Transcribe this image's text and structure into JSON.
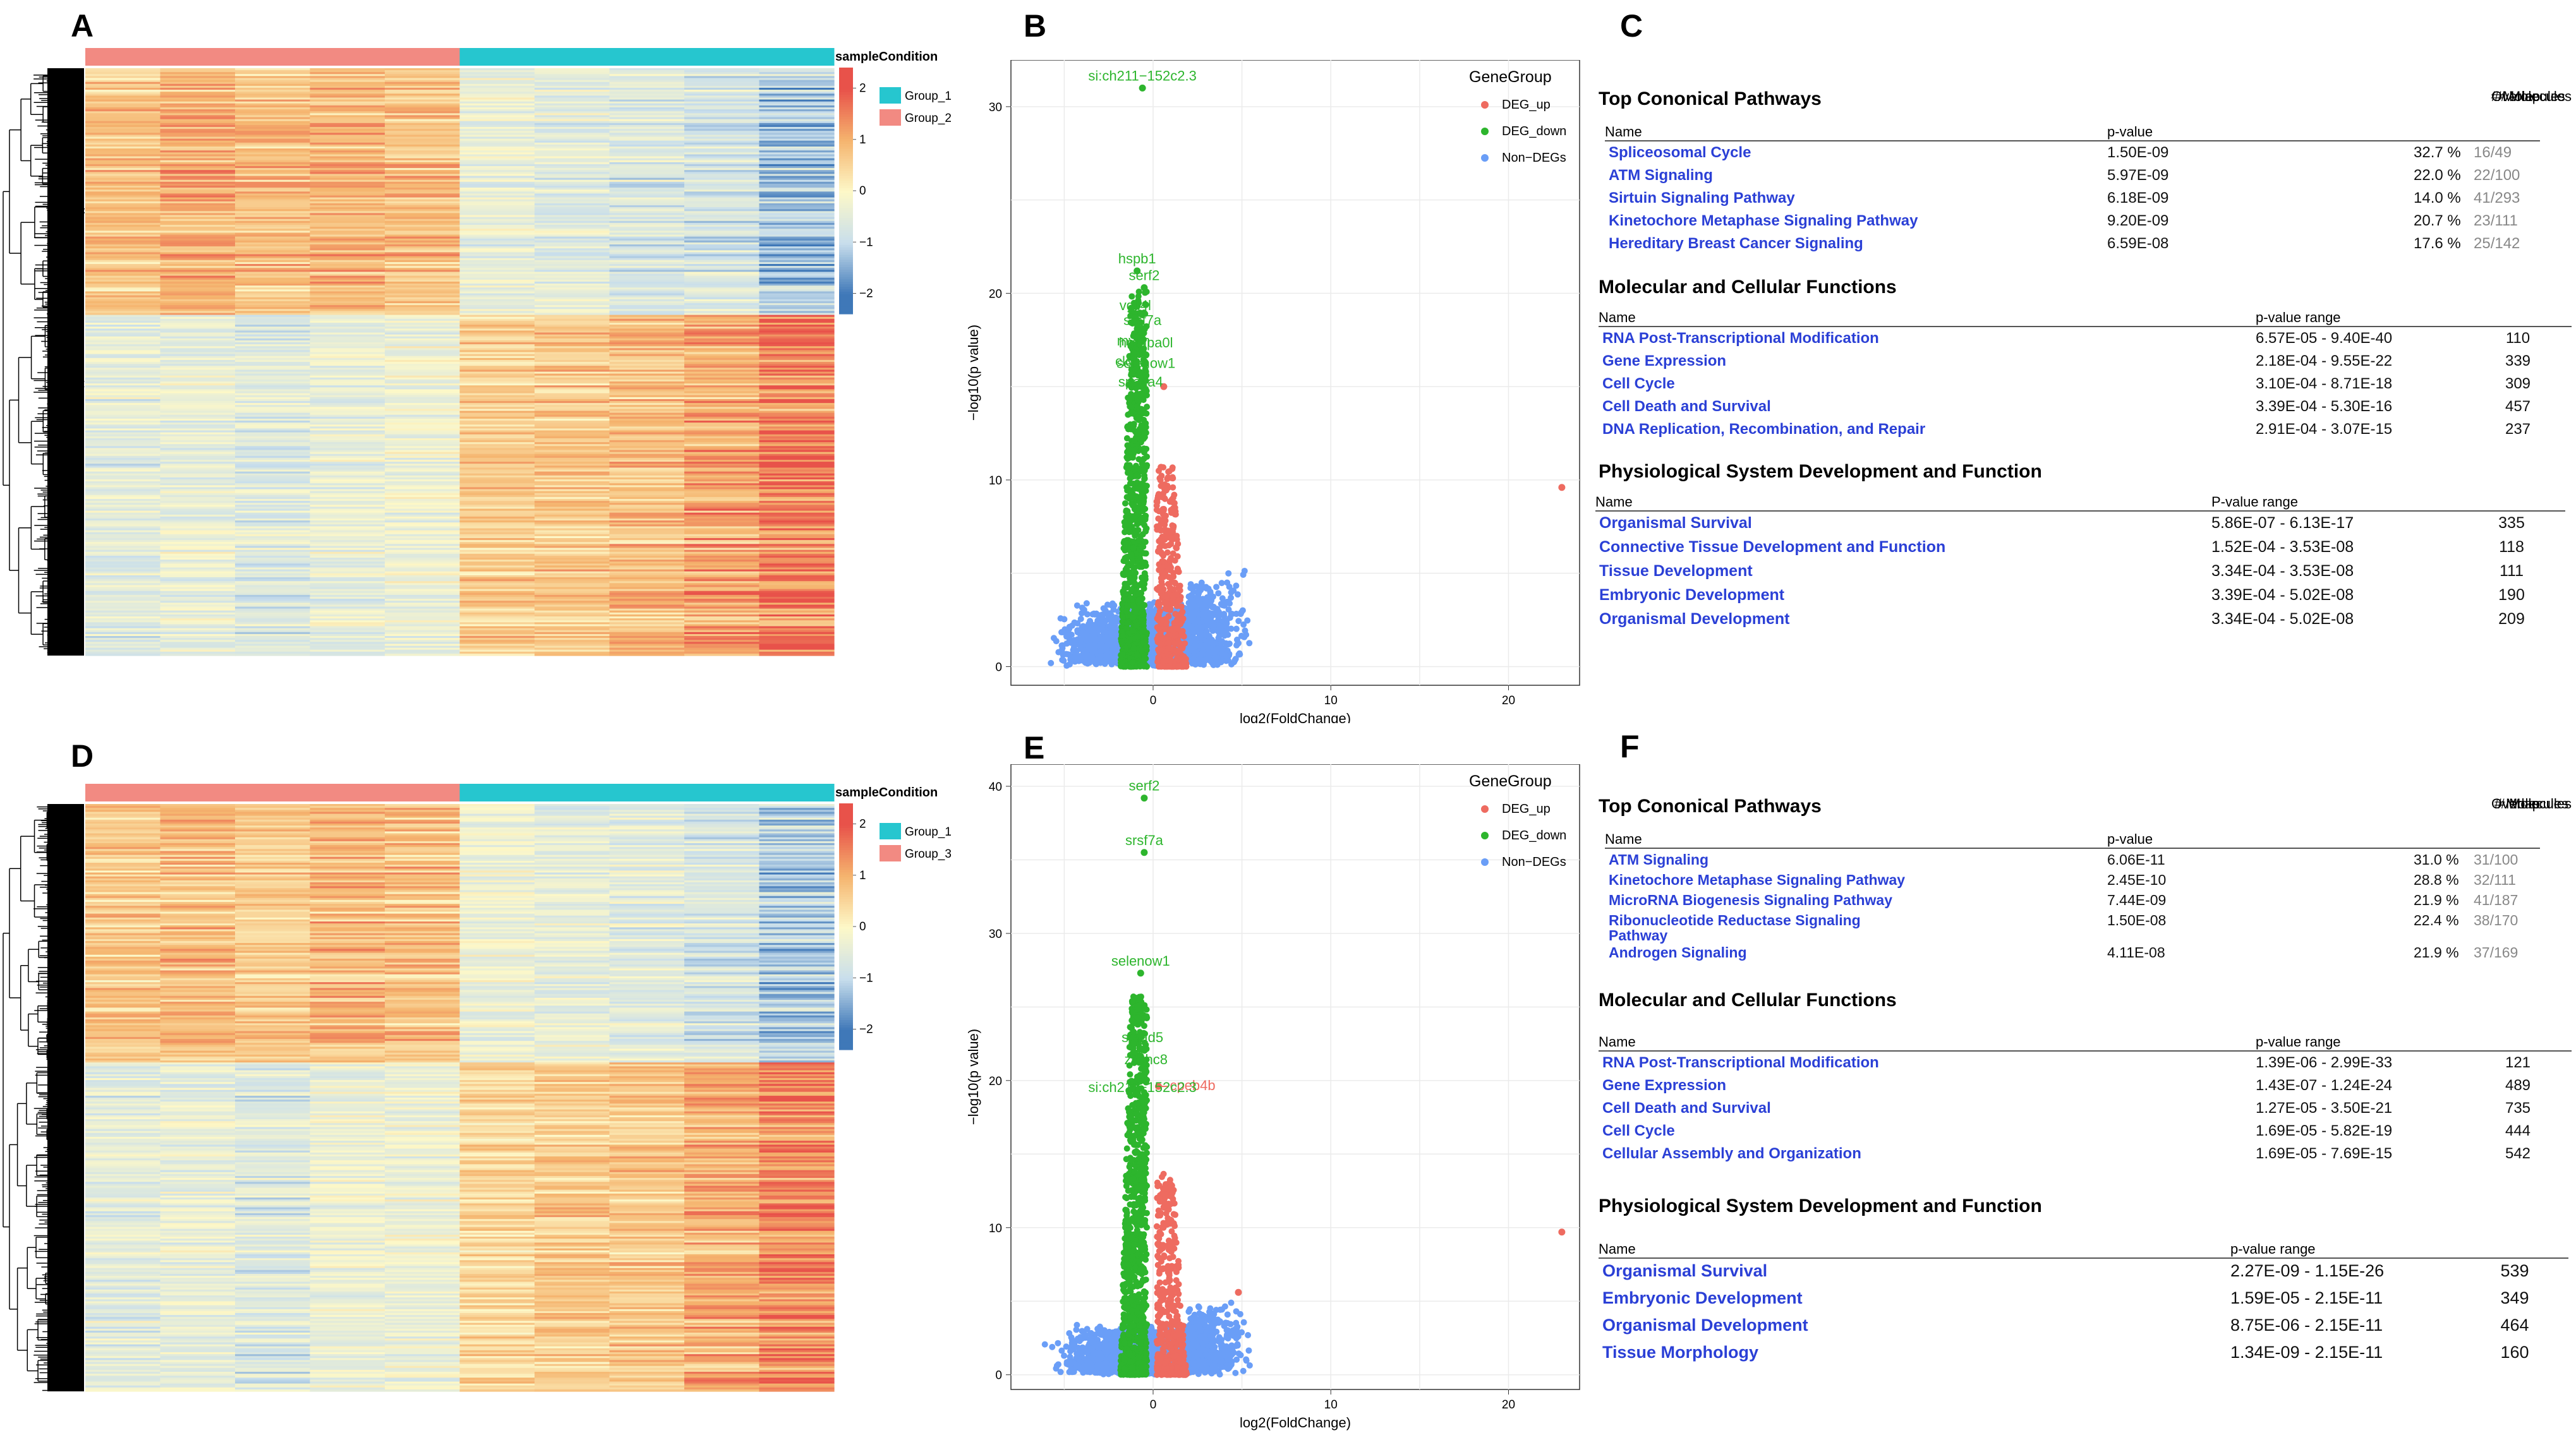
{
  "panels": {
    "A": "A",
    "B": "B",
    "C": "C",
    "D": "D",
    "E": "E",
    "F": "F"
  },
  "colors": {
    "group_1": "#26c6cf",
    "group_2": "#f28a82",
    "heat_high": "#e8524a",
    "heat_mid": "#fdf8c8",
    "heat_low": "#3f78b8",
    "deg_up": "#ee6b60",
    "deg_down": "#2db52d",
    "non_degs": "#6a9ef7",
    "link_text": "#2b40d6"
  },
  "chart_data": [
    {
      "id": "A",
      "type": "heatmap",
      "legend_title": "sampleCondition",
      "legend_entries": [
        "Group_1",
        "Group_2"
      ],
      "sample_groups": [
        "Group_2",
        "Group_2",
        "Group_2",
        "Group_2",
        "Group_2",
        "Group_1",
        "Group_1",
        "Group_1",
        "Group_1",
        "Group_1"
      ],
      "color_scale_ticks": [
        "2",
        "1",
        "0",
        "−1",
        "−2"
      ],
      "clusters": [
        {
          "fraction": 0.42,
          "pattern": [
            0.7,
            1.0,
            0.8,
            0.9,
            0.8,
            -0.4,
            -0.5,
            -0.6,
            -0.7,
            -1.2
          ]
        },
        {
          "fraction": 0.58,
          "pattern": [
            -0.5,
            -0.4,
            -0.6,
            -0.4,
            -0.3,
            0.6,
            0.7,
            0.8,
            1.1,
            1.5
          ]
        }
      ]
    },
    {
      "id": "B",
      "type": "scatter",
      "xlabel": "log2(FoldChange)",
      "ylabel": "−log10(p value)",
      "xlim": [
        -8,
        24
      ],
      "ylim": [
        -1,
        32.5
      ],
      "xticks": [
        0,
        10,
        20
      ],
      "yticks": [
        0,
        10,
        20,
        30
      ],
      "legend_title": "GeneGroup",
      "legend": [
        "DEG_up",
        "DEG_down",
        "Non−DEGs"
      ],
      "grid": true,
      "labeled_points": [
        {
          "label": "si:ch211−152c2.3",
          "x": -0.6,
          "y": 31.0,
          "group": "DEG_down"
        },
        {
          "label": "hspb1",
          "x": -0.9,
          "y": 21.2,
          "group": "DEG_down"
        },
        {
          "label": "serf2",
          "x": -0.5,
          "y": 20.3,
          "group": "DEG_down"
        },
        {
          "label": "vgll4l",
          "x": -1.0,
          "y": 18.7,
          "group": "DEG_down"
        },
        {
          "label": "srsf7a",
          "x": -0.6,
          "y": 17.9,
          "group": "DEG_down"
        },
        {
          "label": "mycn",
          "x": -1.1,
          "y": 16.8,
          "group": "DEG_down"
        },
        {
          "label": "hnrnpa0l",
          "x": -0.4,
          "y": 16.7,
          "group": "DEG_down"
        },
        {
          "label": "cldnb",
          "x": -1.2,
          "y": 15.7,
          "group": "DEG_down"
        },
        {
          "label": "selenow1",
          "x": -0.4,
          "y": 15.6,
          "group": "DEG_down"
        },
        {
          "label": "spaca4",
          "x": -0.7,
          "y": 14.6,
          "group": "DEG_down"
        }
      ],
      "outlier_points": [
        {
          "x": 23.0,
          "y": 9.6,
          "group": "DEG_up"
        },
        {
          "x": 0.6,
          "y": 15.0,
          "group": "DEG_up"
        }
      ]
    },
    {
      "id": "D",
      "type": "heatmap",
      "legend_title": "sampleCondition",
      "legend_entries": [
        "Group_1",
        "Group_3"
      ],
      "sample_groups": [
        "Group_3",
        "Group_3",
        "Group_3",
        "Group_3",
        "Group_3",
        "Group_1",
        "Group_1",
        "Group_1",
        "Group_1",
        "Group_1"
      ],
      "color_scale_ticks": [
        "2",
        "1",
        "0",
        "−1",
        "−2"
      ],
      "clusters": [
        {
          "fraction": 0.44,
          "pattern": [
            0.7,
            0.8,
            0.6,
            0.9,
            0.8,
            -0.3,
            -0.4,
            -0.5,
            -0.7,
            -1.1
          ]
        },
        {
          "fraction": 0.56,
          "pattern": [
            -0.5,
            -0.4,
            -0.6,
            -0.3,
            -0.3,
            0.5,
            0.6,
            0.7,
            1.0,
            1.5
          ]
        }
      ]
    },
    {
      "id": "E",
      "type": "scatter",
      "xlabel": "log2(FoldChange)",
      "ylabel": "−log10(p value)",
      "xlim": [
        -8,
        24
      ],
      "ylim": [
        -1,
        41.5
      ],
      "xticks": [
        0,
        10,
        20
      ],
      "yticks": [
        0,
        10,
        20,
        30,
        40
      ],
      "legend_title": "GeneGroup",
      "legend": [
        "DEG_up",
        "DEG_down",
        "Non−DEGs"
      ],
      "grid": true,
      "labeled_points": [
        {
          "label": "serf2",
          "x": -0.5,
          "y": 39.2,
          "group": "DEG_down"
        },
        {
          "label": "srsf7a",
          "x": -0.5,
          "y": 35.5,
          "group": "DEG_down"
        },
        {
          "label": "selenow1",
          "x": -0.7,
          "y": 27.3,
          "group": "DEG_down"
        },
        {
          "label": "smad5",
          "x": -0.6,
          "y": 22.1,
          "group": "DEG_down"
        },
        {
          "label": "zcchc8",
          "x": -0.4,
          "y": 20.6,
          "group": "DEG_down"
        },
        {
          "label": "cpeb4b",
          "x": 0.3,
          "y": 19.6,
          "group": "DEG_up"
        },
        {
          "label": "si:ch211−152c2.3",
          "x": -0.6,
          "y": 18.7,
          "group": "DEG_down"
        }
      ],
      "outlier_points": [
        {
          "x": 23.0,
          "y": 9.7,
          "group": "DEG_up"
        },
        {
          "x": 4.8,
          "y": 5.6,
          "group": "DEG_up"
        }
      ]
    }
  ],
  "tables": {
    "C": {
      "sections": [
        {
          "title": "Top Cononical Pathways",
          "headers": [
            "Name",
            "p-value",
            "Overlap"
          ],
          "rows": [
            {
              "name": "Spliceosomal Cycle",
              "val": "1.50E-09",
              "pct": "32.7 %",
              "frac": "16/49"
            },
            {
              "name": "ATM Signaling",
              "val": "5.97E-09",
              "pct": "22.0 %",
              "frac": "22/100"
            },
            {
              "name": "Sirtuin Signaling Pathway",
              "val": "6.18E-09",
              "pct": "14.0 %",
              "frac": "41/293"
            },
            {
              "name": "Kinetochore Metaphase Signaling Pathway",
              "val": "9.20E-09",
              "pct": "20.7 %",
              "frac": "23/111"
            },
            {
              "name": "Hereditary Breast Cancer Signaling",
              "val": "6.59E-08",
              "pct": "17.6 %",
              "frac": "25/142"
            }
          ]
        },
        {
          "title": "Molecular and Cellular Functions",
          "headers": [
            "Name",
            "p-value range",
            "# Molecules"
          ],
          "rows": [
            {
              "name": "RNA Post-Transcriptional Modification",
              "val": "6.57E-05 - 9.40E-40",
              "count": "110"
            },
            {
              "name": "Gene Expression",
              "val": "2.18E-04 - 9.55E-22",
              "count": "339"
            },
            {
              "name": "Cell Cycle",
              "val": "3.10E-04 - 8.71E-18",
              "count": "309"
            },
            {
              "name": "Cell Death and Survival",
              "val": "3.39E-04 - 5.30E-16",
              "count": "457"
            },
            {
              "name": "DNA Replication, Recombination, and Repair",
              "val": "2.91E-04 - 3.07E-15",
              "count": "237"
            }
          ]
        },
        {
          "title": "Physiological System Development and Function",
          "headers": [
            "Name",
            "P-value range",
            "# Molecules"
          ],
          "rows": [
            {
              "name": "Organismal Survival",
              "val": "5.86E-07 - 6.13E-17",
              "count": "335"
            },
            {
              "name": "Connective Tissue Development and Function",
              "val": "1.52E-04 - 3.53E-08",
              "count": "118"
            },
            {
              "name": "Tissue Development",
              "val": "3.34E-04 - 3.53E-08",
              "count": "111"
            },
            {
              "name": "Embryonic Development",
              "val": "3.39E-04 - 5.02E-08",
              "count": "190"
            },
            {
              "name": "Organismal Development",
              "val": "3.34E-04 - 5.02E-08",
              "count": "209"
            }
          ]
        }
      ]
    },
    "F": {
      "sections": [
        {
          "title": "Top Cononical Pathways",
          "headers": [
            "Name",
            "p-value",
            "Overlap"
          ],
          "rows": [
            {
              "name": "ATM Signaling",
              "val": "6.06E-11",
              "pct": "31.0 %",
              "frac": "31/100"
            },
            {
              "name": "Kinetochore Metaphase Signaling Pathway",
              "val": "2.45E-10",
              "pct": "28.8 %",
              "frac": "32/111"
            },
            {
              "name": "MicroRNA Biogenesis Signaling Pathway",
              "val": "7.44E-09",
              "pct": "21.9 %",
              "frac": "41/187"
            },
            {
              "name": "Ribonucleotide Reductase Signaling",
              "name2": "Pathway",
              "val": "1.50E-08",
              "pct": "22.4 %",
              "frac": "38/170"
            },
            {
              "name": "Androgen Signaling",
              "val": "4.11E-08",
              "pct": "21.9 %",
              "frac": "37/169"
            }
          ]
        },
        {
          "title": "Molecular and Cellular Functions",
          "headers": [
            "Name",
            "p-value range",
            "# Molecules"
          ],
          "rows": [
            {
              "name": "RNA Post-Transcriptional Modification",
              "val": "1.39E-06 - 2.99E-33",
              "count": "121"
            },
            {
              "name": "Gene Expression",
              "val": "1.43E-07 - 1.24E-24",
              "count": "489"
            },
            {
              "name": "Cell Death and Survival",
              "val": "1.27E-05 - 3.50E-21",
              "count": "735"
            },
            {
              "name": "Cell Cycle",
              "val": "1.69E-05 - 5.82E-19",
              "count": "444"
            },
            {
              "name": "Cellular Assembly and Organization",
              "val": "1.69E-05 - 7.69E-15",
              "count": "542"
            }
          ]
        },
        {
          "title": "Physiological System Development and Function",
          "headers": [
            "Name",
            "p-value range",
            "# Molecules"
          ],
          "rows": [
            {
              "name": "Organismal Survival",
              "val": "2.27E-09 - 1.15E-26",
              "count": "539"
            },
            {
              "name": "Embryonic Development",
              "val": "1.59E-05 - 2.15E-11",
              "count": "349"
            },
            {
              "name": "Organismal Development",
              "val": "8.75E-06 - 2.15E-11",
              "count": "464"
            },
            {
              "name": "Tissue Morphology",
              "val": "1.34E-09 - 2.15E-11",
              "count": "160"
            }
          ]
        }
      ]
    }
  }
}
